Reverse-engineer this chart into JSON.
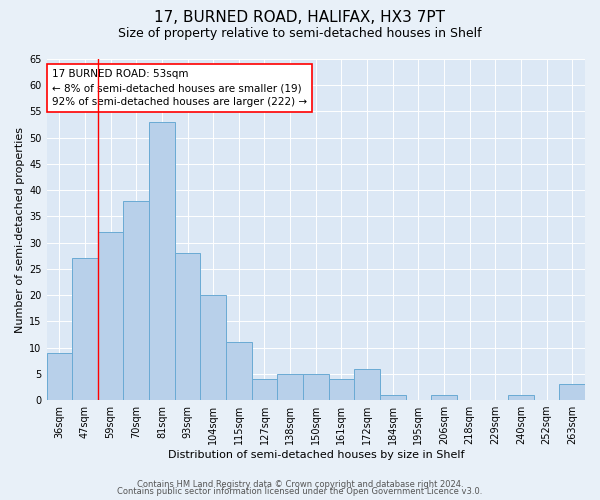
{
  "title": "17, BURNED ROAD, HALIFAX, HX3 7PT",
  "subtitle": "Size of property relative to semi-detached houses in Shelf",
  "xlabel": "Distribution of semi-detached houses by size in Shelf",
  "ylabel": "Number of semi-detached properties",
  "categories": [
    "36sqm",
    "47sqm",
    "59sqm",
    "70sqm",
    "81sqm",
    "93sqm",
    "104sqm",
    "115sqm",
    "127sqm",
    "138sqm",
    "150sqm",
    "161sqm",
    "172sqm",
    "184sqm",
    "195sqm",
    "206sqm",
    "218sqm",
    "229sqm",
    "240sqm",
    "252sqm",
    "263sqm"
  ],
  "values": [
    9,
    27,
    32,
    38,
    53,
    28,
    20,
    11,
    4,
    5,
    5,
    4,
    6,
    1,
    0,
    1,
    0,
    0,
    1,
    0,
    3
  ],
  "bar_color": "#b8d0ea",
  "bar_edge_color": "#6aaad4",
  "vline_x_index": 1.5,
  "annotation_box_text": "17 BURNED ROAD: 53sqm\n← 8% of semi-detached houses are smaller (19)\n92% of semi-detached houses are larger (222) →",
  "ylim": [
    0,
    65
  ],
  "yticks": [
    0,
    5,
    10,
    15,
    20,
    25,
    30,
    35,
    40,
    45,
    50,
    55,
    60,
    65
  ],
  "background_color": "#e8f0f8",
  "plot_bg_color": "#dce8f5",
  "footer_line1": "Contains HM Land Registry data © Crown copyright and database right 2024.",
  "footer_line2": "Contains public sector information licensed under the Open Government Licence v3.0.",
  "title_fontsize": 11,
  "subtitle_fontsize": 9,
  "annotation_fontsize": 7.5,
  "axis_label_fontsize": 8,
  "tick_fontsize": 7,
  "footer_fontsize": 6
}
